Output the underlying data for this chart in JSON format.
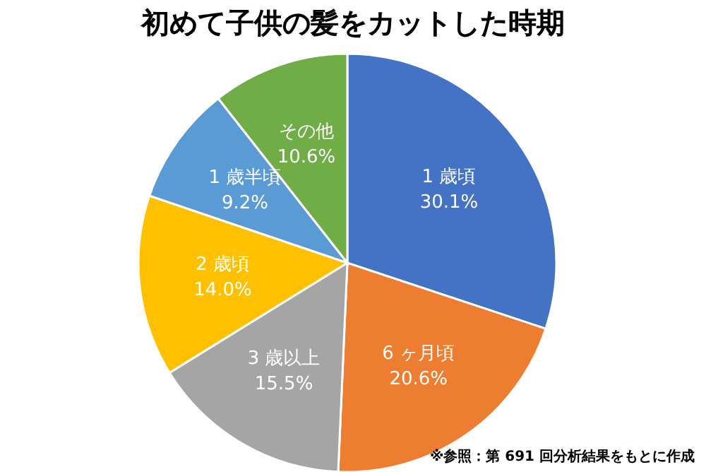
{
  "chart_data": {
    "type": "pie",
    "title": "初めて子供の髪をカットした時期",
    "categories": [
      "1 歳頃",
      "6 ヶ月頃",
      "3 歳以上",
      "2 歳頃",
      "1 歳半頃",
      "その他"
    ],
    "values": [
      30.1,
      20.6,
      15.5,
      14.0,
      9.2,
      10.6
    ],
    "value_labels": [
      "30.1%",
      "20.6%",
      "15.5%",
      "14.0%",
      "9.2%",
      "10.6%"
    ],
    "colors": [
      "#4472c4",
      "#ed7d31",
      "#a5a5a5",
      "#ffc000",
      "#5b9bd5",
      "#70ad47"
    ],
    "annotations": [
      "※参照：第 691 回分析結果をもとに作成"
    ]
  }
}
